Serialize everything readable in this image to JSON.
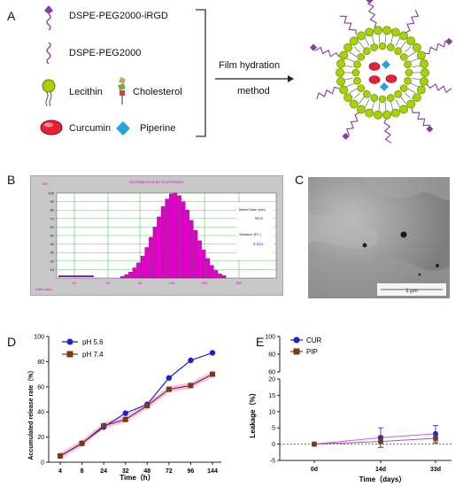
{
  "panel_labels": {
    "a": "A",
    "b": "B",
    "c": "C",
    "d": "D",
    "e": "E"
  },
  "panel_a": {
    "legend": {
      "irgd": "DSPE-PEG2000-iRGD",
      "peg": "DSPE-PEG2000",
      "lecithin": "Lecithin",
      "cholesterol": "Cholesterol",
      "curcumin": "Curcumin",
      "piperine": "Piperine"
    },
    "arrow_top": "Film hydration",
    "arrow_bottom": "method",
    "colors": {
      "lecithin": "#a6d200",
      "curcumin": "#e8213a",
      "piperine": "#2aa4d8",
      "peg": "#8b3b9d"
    }
  },
  "panel_b": {
    "title": "DISTRIBUTION BY SCATTERING",
    "y_ticks": [
      "100",
      "90",
      "80",
      "70",
      "60",
      "50",
      "40",
      "30",
      "20",
      "10"
    ],
    "x_ticks": [
      "10",
      "20",
      "50",
      "100",
      "200",
      "500"
    ],
    "x_axis_label": "Diam (nm)",
    "mean_label": "Mean Diam (nm)",
    "mean_value": "92.6",
    "variance_label": "Variance (P.I.)",
    "variance_value": "0.221",
    "colors": {
      "bar": "#e100c8",
      "frame": "#b0b0b0",
      "grid": "#39b54a"
    }
  },
  "panel_c": {
    "scale_label": "1 μm"
  },
  "chart_data": [
    {
      "type": "line",
      "title": "",
      "xlabel": "Time（h）",
      "ylabel": "Accumulated release rate（%）",
      "categories": [
        "4",
        "8",
        "24",
        "32",
        "48",
        "72",
        "96",
        "144"
      ],
      "ylim": [
        0,
        100
      ],
      "y_ticks": [
        "0",
        "20",
        "40",
        "60",
        "80",
        "100"
      ],
      "series": [
        {
          "name": "pH 5.6",
          "color": "#1f1fd6",
          "marker": "circle",
          "values": [
            5,
            15,
            28,
            39,
            46,
            67,
            81,
            87
          ]
        },
        {
          "name": "pH 7.4",
          "color": "#7a3b14",
          "marker": "square",
          "values": [
            5,
            15,
            29,
            34,
            45,
            58,
            61,
            70
          ]
        }
      ],
      "legend": "top-left",
      "error_band_color": "#f4a6e8"
    },
    {
      "type": "line",
      "title": "",
      "xlabel": "Time（days）",
      "ylabel": "Leakage（%）",
      "categories": [
        "0d",
        "14d",
        "33d"
      ],
      "broken_axis": true,
      "y_ticks_lower": [
        "-5",
        "0",
        "5",
        "10",
        "15",
        "20"
      ],
      "y_ticks_upper": [
        "60",
        "80",
        "100"
      ],
      "series": [
        {
          "name": "CUR",
          "color": "#1f1fd6",
          "marker": "circle",
          "values": [
            0,
            2,
            3.2
          ],
          "errors": [
            0,
            3,
            2.5
          ]
        },
        {
          "name": "PIP",
          "color": "#7a3b14",
          "marker": "square",
          "values": [
            0,
            0.8,
            1.8
          ],
          "errors": [
            0,
            1.8,
            1.5
          ]
        }
      ],
      "legend": "top-left",
      "baseline_color": "#c8102e"
    }
  ]
}
